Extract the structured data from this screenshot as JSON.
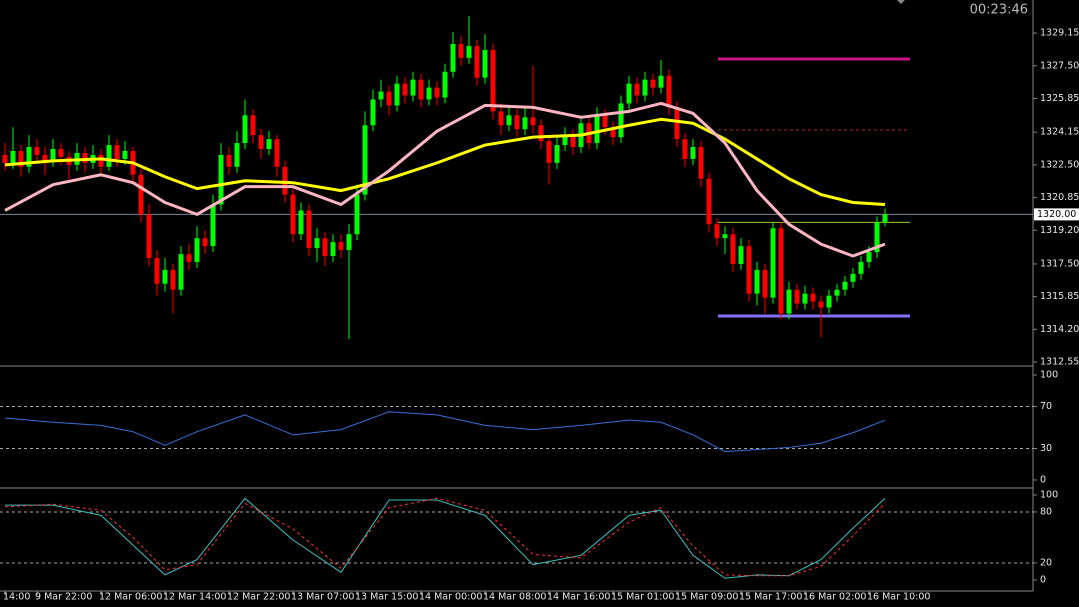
{
  "timer": "00:23:46",
  "chart_data": [
    {
      "type": "candlestick",
      "categories": [
        "14:00",
        null,
        null,
        null,
        "9 Mar 22:00",
        null,
        null,
        null,
        null,
        null,
        null,
        null,
        "12 Mar 06:00",
        null,
        null,
        null,
        null,
        null,
        null,
        null,
        "12 Mar 14:00",
        null,
        null,
        null,
        null,
        null,
        null,
        null,
        "12 Mar 22:00",
        null,
        null,
        null,
        null,
        null,
        null,
        null,
        "13 Mar 07:00",
        null,
        null,
        null,
        null,
        null,
        null,
        null,
        "13 Mar 15:00",
        null,
        null,
        null,
        null,
        null,
        null,
        null,
        "14 Mar 00:00",
        null,
        null,
        null,
        null,
        null,
        null,
        null,
        "14 Mar 08:00",
        null,
        null,
        null,
        null,
        null,
        null,
        null,
        "14 Mar 16:00",
        null,
        null,
        null,
        null,
        null,
        null,
        null,
        "15 Mar 01:00",
        null,
        null,
        null,
        null,
        null,
        null,
        null,
        "15 Mar 09:00",
        null,
        null,
        null,
        null,
        null,
        null,
        null,
        "15 Mar 17:00",
        null,
        null,
        null,
        null,
        null,
        null,
        null,
        "16 Mar 02:00",
        null,
        null,
        null,
        null,
        null,
        null,
        null,
        "16 Mar 10:00",
        null,
        null
      ],
      "ohlc": [
        [
          1323.0,
          1323.6,
          1322.2,
          1322.6
        ],
        [
          1322.6,
          1324.4,
          1322.3,
          1323.2
        ],
        [
          1323.2,
          1323.5,
          1321.9,
          1322.4
        ],
        [
          1322.4,
          1324.0,
          1322.1,
          1323.4
        ],
        [
          1323.4,
          1323.8,
          1322.6,
          1323.0
        ],
        [
          1323.0,
          1323.4,
          1322.0,
          1322.7
        ],
        [
          1322.7,
          1323.8,
          1322.4,
          1323.3
        ],
        [
          1323.3,
          1323.6,
          1322.5,
          1322.9
        ],
        [
          1322.9,
          1323.2,
          1321.8,
          1322.5
        ],
        [
          1322.5,
          1323.6,
          1322.2,
          1323.1
        ],
        [
          1323.1,
          1323.4,
          1322.1,
          1322.6
        ],
        [
          1322.6,
          1323.5,
          1322.3,
          1323.0
        ],
        [
          1323.0,
          1323.3,
          1321.9,
          1322.4
        ],
        [
          1322.4,
          1324.0,
          1322.2,
          1323.5
        ],
        [
          1323.5,
          1323.8,
          1322.4,
          1322.8
        ],
        [
          1322.8,
          1323.7,
          1322.5,
          1323.2
        ],
        [
          1323.2,
          1323.4,
          1321.6,
          1322.0
        ],
        [
          1322.0,
          1322.3,
          1319.6,
          1320.0
        ],
        [
          1320.0,
          1320.5,
          1317.4,
          1317.8
        ],
        [
          1317.8,
          1318.2,
          1315.9,
          1316.5
        ],
        [
          1316.5,
          1317.8,
          1316.1,
          1317.2
        ],
        [
          1317.2,
          1317.5,
          1315.0,
          1316.2
        ],
        [
          1316.2,
          1318.4,
          1315.9,
          1318.0
        ],
        [
          1318.0,
          1318.5,
          1317.2,
          1317.6
        ],
        [
          1317.6,
          1319.4,
          1317.3,
          1318.8
        ],
        [
          1318.8,
          1319.2,
          1318.0,
          1318.4
        ],
        [
          1318.4,
          1321.0,
          1318.1,
          1320.5
        ],
        [
          1320.5,
          1323.6,
          1320.2,
          1323.0
        ],
        [
          1323.0,
          1323.4,
          1322.0,
          1322.4
        ],
        [
          1322.4,
          1324.2,
          1322.1,
          1323.6
        ],
        [
          1323.6,
          1325.8,
          1323.3,
          1325.0
        ],
        [
          1325.0,
          1325.3,
          1323.6,
          1324.0
        ],
        [
          1324.0,
          1324.3,
          1322.8,
          1323.3
        ],
        [
          1323.3,
          1324.2,
          1323.0,
          1323.8
        ],
        [
          1323.8,
          1324.0,
          1321.9,
          1322.4
        ],
        [
          1322.4,
          1322.7,
          1320.6,
          1321.0
        ],
        [
          1321.0,
          1321.3,
          1318.6,
          1319.0
        ],
        [
          1319.0,
          1320.6,
          1318.7,
          1320.2
        ],
        [
          1320.2,
          1320.5,
          1317.9,
          1318.3
        ],
        [
          1318.3,
          1319.3,
          1317.6,
          1318.8
        ],
        [
          1318.8,
          1319.1,
          1317.4,
          1317.9
        ],
        [
          1317.9,
          1319.0,
          1317.6,
          1318.6
        ],
        [
          1318.6,
          1319.0,
          1317.8,
          1318.2
        ],
        [
          1318.2,
          1319.5,
          1313.7,
          1319.0
        ],
        [
          1319.0,
          1321.5,
          1318.7,
          1321.0
        ],
        [
          1321.0,
          1325.2,
          1320.7,
          1324.5
        ],
        [
          1324.5,
          1326.3,
          1324.2,
          1325.8
        ],
        [
          1325.8,
          1326.8,
          1325.4,
          1326.2
        ],
        [
          1326.2,
          1326.5,
          1325.0,
          1325.5
        ],
        [
          1325.5,
          1327.0,
          1325.2,
          1326.6
        ],
        [
          1326.6,
          1326.9,
          1325.6,
          1326.0
        ],
        [
          1326.0,
          1327.2,
          1325.7,
          1326.8
        ],
        [
          1326.8,
          1327.1,
          1325.4,
          1325.8
        ],
        [
          1325.8,
          1326.8,
          1325.5,
          1326.4
        ],
        [
          1326.4,
          1326.7,
          1325.5,
          1325.9
        ],
        [
          1325.9,
          1327.6,
          1325.6,
          1327.2
        ],
        [
          1327.2,
          1329.2,
          1326.9,
          1328.6
        ],
        [
          1328.6,
          1329.0,
          1327.5,
          1327.9
        ],
        [
          1327.9,
          1330.0,
          1327.6,
          1328.5
        ],
        [
          1328.5,
          1328.8,
          1326.5,
          1326.9
        ],
        [
          1326.9,
          1329.1,
          1326.6,
          1328.3
        ],
        [
          1328.3,
          1328.6,
          1324.8,
          1325.2
        ],
        [
          1325.2,
          1325.6,
          1324.0,
          1324.5
        ],
        [
          1324.5,
          1325.4,
          1324.2,
          1325.0
        ],
        [
          1325.0,
          1325.3,
          1323.9,
          1324.3
        ],
        [
          1324.3,
          1325.4,
          1324.0,
          1324.9
        ],
        [
          1324.9,
          1327.5,
          1324.1,
          1324.5
        ],
        [
          1324.5,
          1324.8,
          1323.3,
          1323.7
        ],
        [
          1323.7,
          1324.0,
          1321.5,
          1322.6
        ],
        [
          1322.6,
          1323.9,
          1322.3,
          1323.5
        ],
        [
          1323.5,
          1324.4,
          1323.2,
          1324.0
        ],
        [
          1324.0,
          1324.3,
          1323.0,
          1323.4
        ],
        [
          1323.4,
          1325.0,
          1323.1,
          1324.6
        ],
        [
          1324.6,
          1324.9,
          1323.3,
          1323.6
        ],
        [
          1323.6,
          1325.4,
          1323.3,
          1325.0
        ],
        [
          1325.0,
          1325.3,
          1324.0,
          1324.4
        ],
        [
          1324.4,
          1324.7,
          1323.5,
          1323.9
        ],
        [
          1323.9,
          1326.0,
          1323.6,
          1325.6
        ],
        [
          1325.6,
          1327.0,
          1325.3,
          1326.6
        ],
        [
          1326.6,
          1326.9,
          1325.6,
          1326.0
        ],
        [
          1326.0,
          1327.2,
          1325.7,
          1326.8
        ],
        [
          1326.8,
          1327.1,
          1326.0,
          1326.4
        ],
        [
          1326.4,
          1327.8,
          1326.1,
          1327.0
        ],
        [
          1327.0,
          1327.3,
          1325.0,
          1325.4
        ],
        [
          1325.4,
          1325.7,
          1323.4,
          1323.8
        ],
        [
          1323.8,
          1324.1,
          1322.4,
          1322.8
        ],
        [
          1322.8,
          1323.8,
          1322.5,
          1323.4
        ],
        [
          1323.4,
          1323.7,
          1321.4,
          1321.8
        ],
        [
          1321.8,
          1322.1,
          1319.1,
          1319.5
        ],
        [
          1319.5,
          1319.8,
          1318.4,
          1318.8
        ],
        [
          1318.8,
          1319.4,
          1318.0,
          1319.0
        ],
        [
          1319.0,
          1319.3,
          1317.1,
          1317.5
        ],
        [
          1317.5,
          1318.8,
          1317.2,
          1318.4
        ],
        [
          1318.4,
          1318.7,
          1315.6,
          1316.0
        ],
        [
          1316.0,
          1317.6,
          1315.4,
          1317.2
        ],
        [
          1317.2,
          1317.5,
          1315.0,
          1315.8
        ],
        [
          1315.8,
          1319.6,
          1315.5,
          1319.3
        ],
        [
          1319.3,
          1319.6,
          1314.7,
          1315.0
        ],
        [
          1315.0,
          1316.6,
          1314.7,
          1316.2
        ],
        [
          1316.2,
          1316.5,
          1315.2,
          1315.5
        ],
        [
          1315.5,
          1316.4,
          1315.2,
          1316.0
        ],
        [
          1316.0,
          1316.3,
          1315.2,
          1315.6
        ],
        [
          1315.6,
          1315.9,
          1313.8,
          1315.3
        ],
        [
          1315.3,
          1316.2,
          1315.0,
          1315.9
        ],
        [
          1315.9,
          1316.5,
          1315.6,
          1316.2
        ],
        [
          1316.2,
          1316.9,
          1315.9,
          1316.6
        ],
        [
          1316.6,
          1317.3,
          1316.3,
          1317.0
        ],
        [
          1317.0,
          1317.9,
          1316.7,
          1317.6
        ],
        [
          1317.6,
          1318.4,
          1317.3,
          1318.1
        ],
        [
          1318.1,
          1319.9,
          1317.8,
          1319.6
        ],
        [
          1319.6,
          1320.3,
          1319.4,
          1320.0
        ]
      ],
      "up_color": "#00ff00",
      "down_color": "#ff0000",
      "series": [
        {
          "color": "#ffff00",
          "width": 3,
          "x": [
            0,
            6,
            12,
            16,
            20,
            24,
            30,
            36,
            42,
            48,
            54,
            60,
            66,
            72,
            78,
            82,
            86,
            90,
            94,
            98,
            102,
            106,
            110
          ],
          "values": [
            1322.5,
            1322.7,
            1322.8,
            1322.6,
            1321.9,
            1321.3,
            1321.7,
            1321.6,
            1321.2,
            1321.8,
            1322.6,
            1323.5,
            1323.9,
            1324.0,
            1324.5,
            1324.8,
            1324.6,
            1323.8,
            1322.8,
            1321.8,
            1321.0,
            1320.6,
            1320.5
          ]
        },
        {
          "color": "#ffb6c1",
          "width": 3,
          "x": [
            0,
            6,
            12,
            16,
            20,
            24,
            30,
            36,
            42,
            48,
            54,
            60,
            66,
            72,
            78,
            82,
            86,
            90,
            94,
            98,
            102,
            106,
            110
          ],
          "values": [
            1320.2,
            1321.5,
            1322.0,
            1321.6,
            1320.6,
            1320.0,
            1321.4,
            1321.4,
            1320.5,
            1322.2,
            1324.2,
            1325.5,
            1325.4,
            1324.9,
            1325.2,
            1325.6,
            1325.1,
            1323.6,
            1321.2,
            1319.5,
            1318.5,
            1317.9,
            1318.5
          ]
        }
      ],
      "hlines": [
        {
          "value": 1327.84,
          "color": "#c71585",
          "width": 3,
          "dash": false
        },
        {
          "value": 1324.26,
          "color": "#b22222",
          "width": 1,
          "dash": true
        },
        {
          "value": 1319.6,
          "color": "#9acd32",
          "width": 1,
          "dash": false
        },
        {
          "value": 1314.87,
          "color": "#8470ff",
          "width": 3,
          "dash": false
        }
      ],
      "last_price": {
        "value": 1320,
        "label": "1320.00"
      },
      "ylim": [
        1312.4,
        1330.82
      ],
      "yticks": [
        1329.15,
        {
          "value": 1327.5,
          "label": "1327.50"
        },
        1325.85,
        1324.15,
        {
          "value": 1322.5,
          "label": "1322.50"
        },
        1320.85,
        {
          "value": 1319.2,
          "label": "1319.20"
        },
        {
          "value": 1317.5,
          "label": "1317.50"
        },
        1315.85,
        {
          "value": 1314.2,
          "label": "1314.20"
        },
        1312.55
      ]
    },
    {
      "type": "line",
      "series": [
        {
          "color": "#3a6fd8",
          "width": 1,
          "dash": false,
          "x": [
            0,
            6,
            12,
            16,
            20,
            24,
            30,
            36,
            42,
            48,
            54,
            60,
            66,
            72,
            78,
            82,
            86,
            90,
            94,
            98,
            102,
            106,
            110
          ],
          "values": [
            59,
            55,
            52,
            46,
            33,
            46,
            62,
            43,
            48,
            65,
            62,
            52,
            48,
            52,
            57,
            55,
            43,
            27,
            29,
            31,
            35,
            45,
            57
          ]
        }
      ],
      "levels": [
        70,
        30
      ],
      "ylim": [
        -6.7,
        106.7
      ],
      "yticks": [
        100,
        70,
        30,
        0
      ]
    },
    {
      "type": "line",
      "series": [
        {
          "color": "#40c0c0",
          "width": 1,
          "dash": false,
          "x": [
            0,
            6,
            12,
            16,
            20,
            24,
            30,
            36,
            42,
            48,
            54,
            60,
            66,
            72,
            78,
            82,
            86,
            90,
            94,
            98,
            102,
            106,
            110
          ],
          "values": [
            88,
            88,
            76,
            41,
            6,
            24,
            96,
            47,
            9,
            94,
            94,
            76,
            18,
            29,
            76,
            82,
            29,
            2,
            6,
            5,
            24,
            61,
            96
          ]
        },
        {
          "color": "#ff3030",
          "width": 1,
          "dash": true,
          "x": [
            0,
            6,
            12,
            16,
            20,
            24,
            30,
            36,
            42,
            48,
            54,
            60,
            66,
            72,
            78,
            82,
            86,
            90,
            94,
            98,
            102,
            106,
            110
          ],
          "values": [
            86,
            89,
            82,
            50,
            12,
            18,
            90,
            60,
            14,
            85,
            96,
            82,
            30,
            26,
            68,
            85,
            40,
            6,
            5,
            5,
            16,
            52,
            90
          ]
        }
      ],
      "levels": [
        80,
        20
      ],
      "ylim": [
        -11.8,
        107
      ],
      "yticks": [
        100,
        80,
        20,
        0
      ]
    }
  ]
}
